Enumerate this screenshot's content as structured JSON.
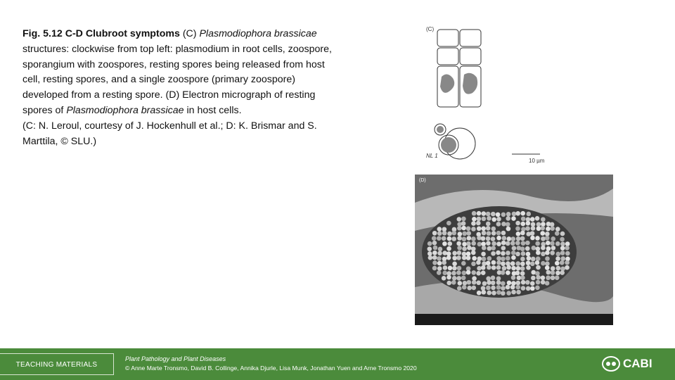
{
  "caption": {
    "segments": [
      "Fig. 5.12 C-D Clubroot symptoms",
      " (C) ",
      "Plasmodiophora brassicae",
      " structures: clockwise from top left: plasmodium in root cells, zoospore, sporangium with zoospores, resting spores being released from host cell, resting spores, and a single zoospore (primary zoospore) developed from a resting spore. (D) Electron micrograph of resting spores of ",
      "Plasmodiophora brassicae",
      " in host cells."
    ],
    "credit": "(C: N. Leroul, courtesy of J. Hockenhull et al.; D: K. Brismar and S. Marttila, © SLU.)"
  },
  "figure_c": {
    "label": "(C)",
    "code": "NL 1",
    "scale": "10 µm"
  },
  "figure_d": {
    "label": "(D)"
  },
  "footer": {
    "section": "TEACHING MATERIALS",
    "book": "Plant Pathology and Plant Diseases",
    "copyright": "© Anne Marte Tronsmo, David B. Collinge, Annika Djurle, Lisa Munk, Jonathan Yuen and Arne Tronsmo 2020",
    "logo": "CABI"
  }
}
